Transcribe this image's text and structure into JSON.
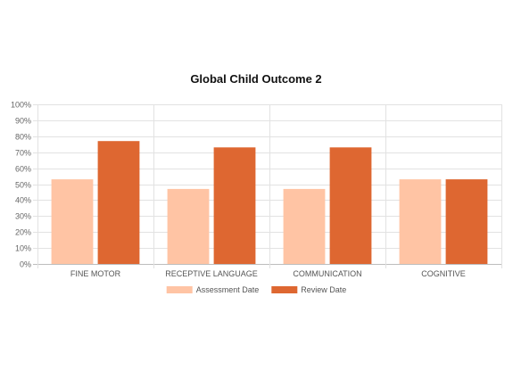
{
  "chart_data": {
    "type": "bar",
    "title": "Global Child Outcome 2",
    "categories": [
      "FINE MOTOR",
      "RECEPTIVE LANGUAGE",
      "COMMUNICATION",
      "COGNITIVE"
    ],
    "series": [
      {
        "name": "Assessment Date",
        "values": [
          53,
          47,
          47,
          53
        ],
        "color": "#ffc4a4"
      },
      {
        "name": "Review Date",
        "values": [
          77,
          73,
          73,
          53
        ],
        "color": "#de6731"
      }
    ],
    "ylim": [
      0,
      100
    ],
    "y_ticks": [
      0,
      10,
      20,
      30,
      40,
      50,
      60,
      70,
      80,
      90,
      100
    ],
    "y_tick_suffix": "%",
    "grid": true,
    "legend_position": "bottom-center",
    "xlabel": "",
    "ylabel": ""
  }
}
